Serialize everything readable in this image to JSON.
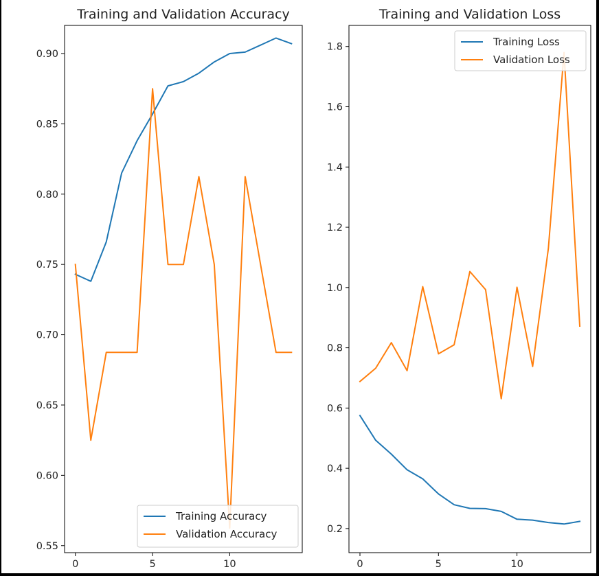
{
  "chart_data": [
    {
      "type": "line",
      "title": "Training and Validation Accuracy",
      "xlabel": "",
      "ylabel": "",
      "xlim": [
        -0.7,
        14.7
      ],
      "ylim": [
        0.545,
        0.92
      ],
      "xticks": [
        0,
        5,
        10
      ],
      "xtick_labels": [
        "0",
        "5",
        "10"
      ],
      "yticks": [
        0.55,
        0.6,
        0.65,
        0.7,
        0.75,
        0.8,
        0.85,
        0.9
      ],
      "ytick_labels": [
        "0.55",
        "0.60",
        "0.65",
        "0.70",
        "0.75",
        "0.80",
        "0.85",
        "0.90"
      ],
      "grid": false,
      "legend_position": "lower-right",
      "x": [
        0,
        1,
        2,
        3,
        4,
        5,
        6,
        7,
        8,
        9,
        10,
        11,
        12,
        13,
        14
      ],
      "series": [
        {
          "name": "Training Accuracy",
          "color": "#1f77b4",
          "values": [
            0.743,
            0.738,
            0.766,
            0.815,
            0.838,
            0.857,
            0.877,
            0.88,
            0.886,
            0.894,
            0.9,
            0.901,
            0.906,
            0.911,
            0.907
          ]
        },
        {
          "name": "Validation Accuracy",
          "color": "#ff7f0e",
          "values": [
            0.75,
            0.625,
            0.6875,
            0.6875,
            0.6875,
            0.875,
            0.75,
            0.75,
            0.8125,
            0.75,
            0.5625,
            0.8125,
            0.75,
            0.6875,
            0.6875
          ]
        }
      ]
    },
    {
      "type": "line",
      "title": "Training and Validation Loss",
      "xlabel": "",
      "ylabel": "",
      "xlim": [
        -0.7,
        14.7
      ],
      "ylim": [
        0.12,
        1.87
      ],
      "xticks": [
        0,
        5,
        10
      ],
      "xtick_labels": [
        "0",
        "5",
        "10"
      ],
      "yticks": [
        0.2,
        0.4,
        0.6,
        0.8,
        1.0,
        1.2,
        1.4,
        1.6,
        1.8
      ],
      "ytick_labels": [
        "0.2",
        "0.4",
        "0.6",
        "0.8",
        "1.0",
        "1.2",
        "1.4",
        "1.6",
        "1.8"
      ],
      "grid": false,
      "legend_position": "upper-right",
      "x": [
        0,
        1,
        2,
        3,
        4,
        5,
        6,
        7,
        8,
        9,
        10,
        11,
        12,
        13,
        14
      ],
      "series": [
        {
          "name": "Training Loss",
          "color": "#1f77b4",
          "values": [
            0.575,
            0.493,
            0.447,
            0.395,
            0.365,
            0.315,
            0.279,
            0.267,
            0.266,
            0.257,
            0.231,
            0.228,
            0.22,
            0.215,
            0.224
          ]
        },
        {
          "name": "Validation Loss",
          "color": "#ff7f0e",
          "values": [
            0.688,
            0.732,
            0.817,
            0.724,
            1.003,
            0.78,
            0.81,
            1.053,
            0.993,
            0.631,
            1.001,
            0.738,
            1.13,
            1.78,
            0.872
          ]
        }
      ]
    }
  ]
}
